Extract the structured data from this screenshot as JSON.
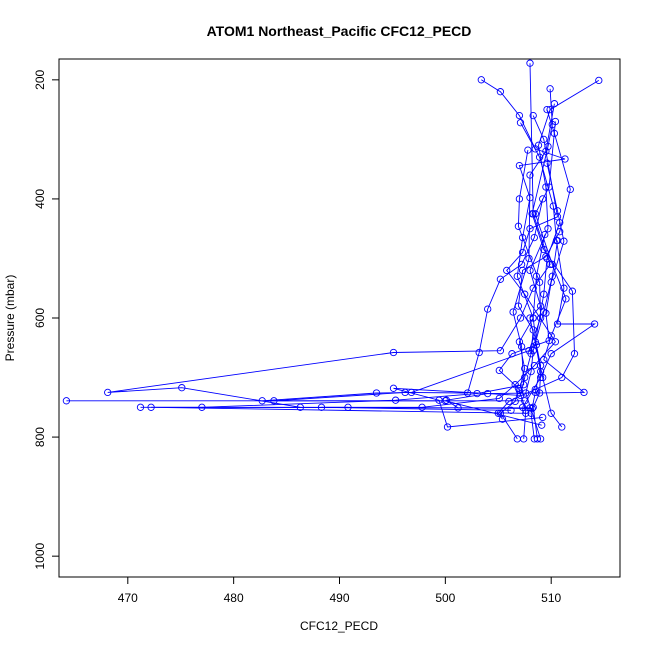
{
  "chart_data": {
    "type": "scatter",
    "title": "ATOM1 Northeast_Pacific CFC12_PECD",
    "xlabel": "CFC12_PECD",
    "ylabel": "Pressure (mbar)",
    "xlim": [
      463.5,
      516.5
    ],
    "ylim": [
      1035,
      165
    ],
    "y_reversed": true,
    "x_ticks": [
      470,
      480,
      490,
      500,
      510
    ],
    "y_ticks": [
      200,
      400,
      600,
      800,
      1000
    ],
    "series_color": "#0000ff",
    "marker": "open-circle",
    "connected": true,
    "grid": false,
    "legend": "none",
    "profiles": [
      [
        [
          514.5,
          201
        ],
        [
          509.9,
          250
        ],
        [
          508.8,
          310
        ],
        [
          509.5,
          380
        ],
        [
          509.7,
          450
        ],
        [
          508.0,
          520
        ],
        [
          509.0,
          580
        ],
        [
          508.0,
          600
        ],
        [
          509.2,
          700
        ],
        [
          510.0,
          760
        ],
        [
          511.0,
          783
        ]
      ],
      [
        [
          503.4,
          200
        ],
        [
          505.2,
          220
        ],
        [
          507.0,
          260
        ],
        [
          508.5,
          316
        ],
        [
          511.3,
          333
        ],
        [
          507.0,
          344
        ],
        [
          508.0,
          398
        ],
        [
          507.3,
          465
        ],
        [
          506.8,
          530
        ],
        [
          508.3,
          600
        ],
        [
          507.0,
          640
        ],
        [
          507.5,
          685
        ],
        [
          507.0,
          722
        ],
        [
          507.6,
          755
        ],
        [
          507.4,
          803
        ]
      ],
      [
        [
          509.9,
          215
        ],
        [
          510.1,
          275
        ],
        [
          509.7,
          312
        ],
        [
          508.2,
          425
        ],
        [
          509.3,
          485
        ],
        [
          512.0,
          555
        ],
        [
          512.2,
          660
        ],
        [
          511.0,
          700
        ],
        [
          508.5,
          720
        ],
        [
          506.0,
          740
        ],
        [
          505.0,
          760
        ],
        [
          505.4,
          770
        ]
      ],
      [
        [
          507.1,
          272
        ],
        [
          508.9,
          330
        ],
        [
          510.2,
          412
        ],
        [
          510.5,
          470
        ],
        [
          511.2,
          550
        ],
        [
          510.6,
          610
        ],
        [
          514.1,
          610
        ],
        [
          510.0,
          660
        ],
        [
          509.0,
          700
        ],
        [
          507.3,
          750
        ]
      ],
      [
        [
          510.4,
          270
        ],
        [
          509.8,
          380
        ],
        [
          508.5,
          425
        ],
        [
          510.1,
          510
        ],
        [
          511.4,
          568
        ],
        [
          510.0,
          630
        ],
        [
          509.3,
          670
        ],
        [
          513.1,
          725
        ],
        [
          504.0,
          727
        ],
        [
          500.1,
          738
        ],
        [
          501.2,
          751
        ],
        [
          508.2,
          752
        ]
      ],
      [
        [
          510.3,
          240
        ],
        [
          509.5,
          320
        ],
        [
          508.0,
          360
        ],
        [
          507.9,
          500
        ],
        [
          506.4,
          590
        ],
        [
          507.2,
          648
        ],
        [
          507.4,
          712
        ],
        [
          503.0,
          727
        ],
        [
          495.3,
          738
        ],
        [
          477.0,
          750
        ],
        [
          471.2,
          750
        ],
        [
          508.0,
          751
        ]
      ],
      [
        [
          509.2,
          400
        ],
        [
          508.4,
          465
        ],
        [
          507.2,
          510
        ],
        [
          505.2,
          535
        ],
        [
          504.0,
          585
        ],
        [
          503.2,
          658
        ],
        [
          502.1,
          726
        ],
        [
          496.2,
          725
        ],
        [
          483.8,
          739
        ],
        [
          464.2,
          739
        ],
        [
          507.5,
          739
        ]
      ],
      [
        [
          508.0,
          172
        ],
        [
          508.3,
          425
        ],
        [
          509.9,
          510
        ],
        [
          508.3,
          550
        ],
        [
          507.1,
          600
        ],
        [
          505.2,
          655
        ],
        [
          495.1,
          658
        ],
        [
          468.1,
          725
        ],
        [
          475.1,
          717
        ],
        [
          486.3,
          750
        ],
        [
          490.8,
          750
        ],
        [
          472.2,
          750
        ],
        [
          507.6,
          760
        ]
      ],
      [
        [
          507.8,
          318
        ],
        [
          507.0,
          400
        ],
        [
          506.9,
          446
        ],
        [
          508.9,
          540
        ],
        [
          509.0,
          600
        ],
        [
          507.9,
          655
        ],
        [
          496.8,
          725
        ],
        [
          493.5,
          726
        ],
        [
          482.7,
          739
        ],
        [
          500.0,
          739
        ],
        [
          509.1,
          780
        ]
      ],
      [
        [
          508.3,
          260
        ],
        [
          509.3,
          300
        ],
        [
          510.6,
          430
        ],
        [
          508.0,
          450
        ],
        [
          507.3,
          490
        ],
        [
          505.8,
          520
        ],
        [
          507.5,
          560
        ],
        [
          510.4,
          640
        ],
        [
          508.4,
          680
        ],
        [
          506.6,
          712
        ],
        [
          505.1,
          735
        ],
        [
          497.8,
          750
        ],
        [
          488.3,
          750
        ],
        [
          506.2,
          755
        ]
      ],
      [
        [
          509.6,
          250
        ],
        [
          510.3,
          290
        ],
        [
          511.8,
          384
        ],
        [
          510.8,
          455
        ],
        [
          509.5,
          497
        ],
        [
          507.3,
          520
        ],
        [
          506.9,
          580
        ],
        [
          508.3,
          620
        ],
        [
          508.1,
          660
        ],
        [
          507.5,
          700
        ],
        [
          507.1,
          730
        ],
        [
          495.1,
          718
        ],
        [
          499.4,
          738
        ],
        [
          500.2,
          783
        ],
        [
          509.2,
          767
        ]
      ],
      [
        [
          509.6,
          340
        ],
        [
          510.6,
          420
        ],
        [
          511.2,
          471
        ],
        [
          510.0,
          540
        ],
        [
          509.5,
          592
        ],
        [
          509.8,
          638
        ],
        [
          506.3,
          660
        ],
        [
          505.1,
          688
        ],
        [
          506.9,
          718
        ],
        [
          506.6,
          740
        ],
        [
          505.2,
          760
        ],
        [
          506.8,
          803
        ]
      ],
      [
        [
          510.8,
          440
        ],
        [
          509.6,
          500
        ],
        [
          509.3,
          560
        ],
        [
          508.5,
          640
        ],
        [
          509.0,
          690
        ],
        [
          508.9,
          726
        ],
        [
          508.3,
          750
        ],
        [
          508.7,
          803
        ]
      ],
      [
        [
          509.4,
          460
        ],
        [
          508.6,
          530
        ],
        [
          508.3,
          600
        ],
        [
          508.6,
          645
        ],
        [
          509.0,
          680
        ],
        [
          508.5,
          725
        ],
        [
          508.1,
          760
        ],
        [
          508.4,
          803
        ]
      ],
      [
        [
          510.6,
          470
        ],
        [
          510.1,
          530
        ],
        [
          509.3,
          590
        ],
        [
          508.3,
          655
        ],
        [
          508.1,
          690
        ],
        [
          507.6,
          726
        ],
        [
          509.0,
          803
        ]
      ]
    ]
  }
}
